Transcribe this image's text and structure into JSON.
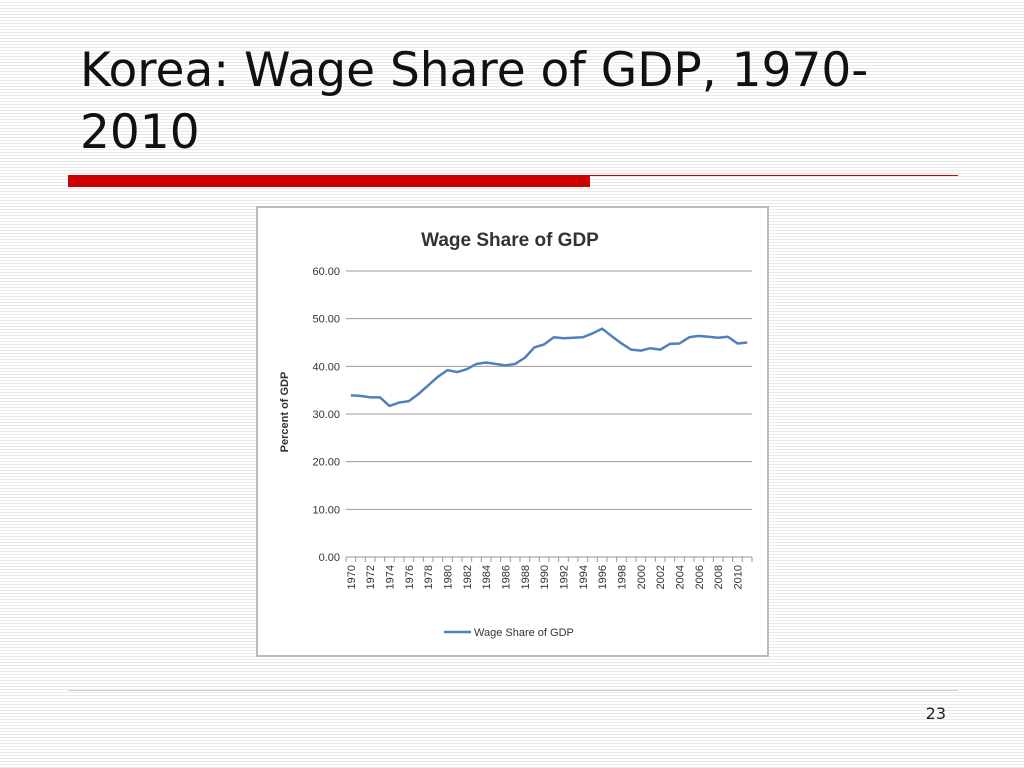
{
  "slide": {
    "title": "Korea: Wage Share of GDP, 1970-2010",
    "page_number": "23"
  },
  "chart_data": {
    "type": "line",
    "title": "Wage Share of GDP",
    "y_label": "Percent of GDP",
    "categories": [
      "1970",
      null,
      "1972",
      null,
      "1974",
      null,
      "1976",
      null,
      "1978",
      null,
      "1980",
      null,
      "1982",
      null,
      "1984",
      null,
      "1986",
      null,
      "1988",
      null,
      "1990",
      null,
      "1992",
      null,
      "1994",
      null,
      "1996",
      null,
      "1998",
      null,
      "2000",
      null,
      "2002",
      null,
      "2004",
      null,
      "2006",
      null,
      "2008",
      null,
      "2010",
      null
    ],
    "series": [
      {
        "name": "Wage Share of GDP",
        "color": "#4f81bd",
        "values": [
          33.9,
          33.8,
          33.5,
          33.5,
          31.7,
          32.4,
          32.7,
          34.2,
          36.0,
          37.8,
          39.2,
          38.8,
          39.4,
          40.5,
          40.8,
          40.5,
          40.2,
          40.5,
          41.8,
          44.0,
          44.6,
          46.1,
          45.9,
          46.0,
          46.1,
          46.9,
          47.9,
          46.3,
          44.8,
          43.5,
          43.3,
          43.8,
          43.5,
          44.7,
          44.8,
          46.1,
          46.4,
          46.2,
          46.0,
          46.2,
          44.8,
          45.0
        ]
      }
    ],
    "ylim": [
      0,
      60
    ],
    "yticks": [
      {
        "value": 0,
        "label": "0.00"
      },
      {
        "value": 10,
        "label": "10.00"
      },
      {
        "value": 20,
        "label": "20.00"
      },
      {
        "value": 30,
        "label": "30.00"
      },
      {
        "value": 40,
        "label": "40.00"
      },
      {
        "value": 50,
        "label": "50.00"
      },
      {
        "value": 60,
        "label": "60.00"
      }
    ],
    "grid": true,
    "legend": "bottom"
  }
}
